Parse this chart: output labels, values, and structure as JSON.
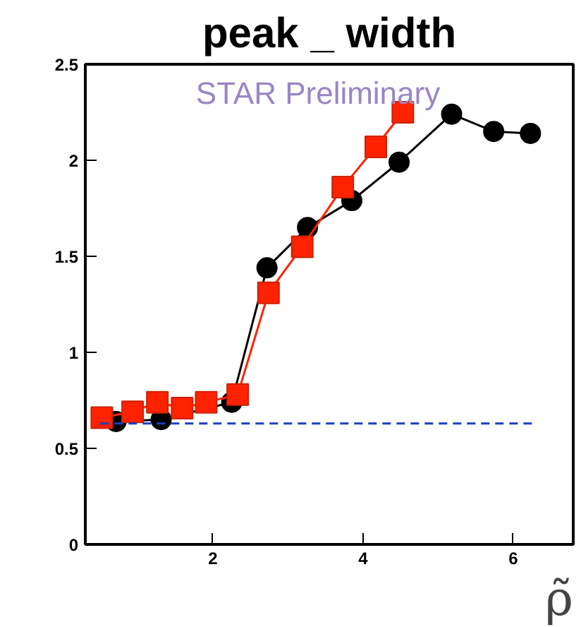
{
  "chart_data": {
    "type": "line",
    "title": "peak _ width",
    "xlabel": "ρ̃",
    "annotations": [
      "STAR Preliminary"
    ],
    "xlim": [
      0.3,
      6.8
    ],
    "ylim": [
      0,
      2.5
    ],
    "xticks": [
      2,
      4,
      6
    ],
    "yticks": [
      0,
      0.5,
      1,
      1.5,
      2,
      2.5
    ],
    "grid": false,
    "series": [
      {
        "color": "#000000",
        "marker": "circle",
        "line_style": "solid",
        "x": [
          0.71,
          1.31,
          2.25,
          2.72,
          3.26,
          3.85,
          4.48,
          5.18,
          5.74,
          6.23
        ],
        "values": [
          0.64,
          0.65,
          0.74,
          1.44,
          1.65,
          1.79,
          1.99,
          2.24,
          2.15,
          2.14
        ]
      },
      {
        "color": "#ff2200",
        "marker": "square",
        "line_style": "solid",
        "x": [
          0.52,
          0.93,
          1.26,
          1.59,
          1.91,
          2.33,
          2.74,
          3.19,
          3.73,
          4.17,
          4.53
        ],
        "values": [
          0.66,
          0.69,
          0.74,
          0.71,
          0.74,
          0.78,
          1.31,
          1.55,
          1.86,
          2.07,
          2.25
        ]
      },
      {
        "color": "#1a3fbf",
        "marker": "none",
        "line_style": "dashed",
        "x": [
          0.5,
          6.3
        ],
        "values": [
          0.63,
          0.63
        ]
      }
    ]
  }
}
